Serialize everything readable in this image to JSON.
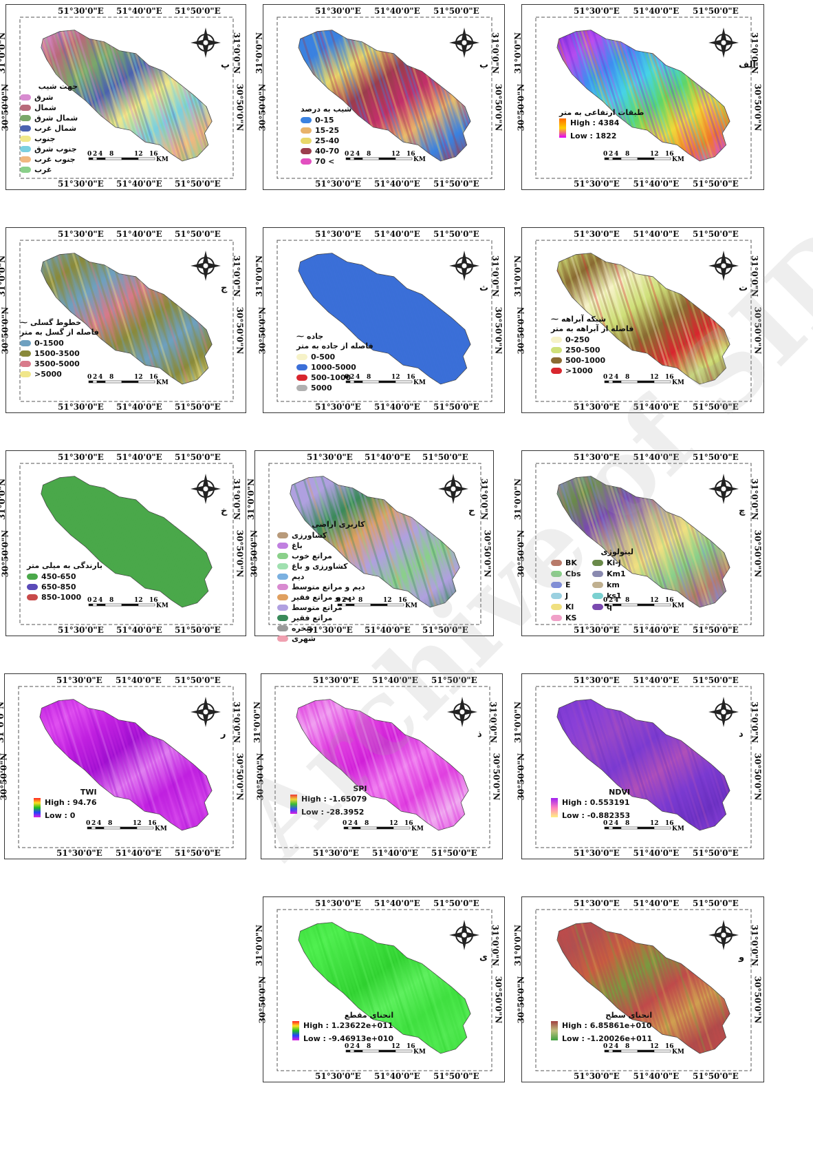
{
  "coords": {
    "lon": [
      "51°30'0\"E",
      "51°40'0\"E",
      "51°50'0\"E"
    ],
    "lat": [
      "31°0'0\"N",
      "30°50'0\"N"
    ]
  },
  "scale": {
    "ticks": [
      "0",
      "2",
      "4",
      "8",
      "12",
      "16"
    ],
    "unit": "KM"
  },
  "watermark": "Archive of SID",
  "panels": [
    {
      "id": "elevation",
      "letter": "الف",
      "legend_title": "طبقات ارتفاعی به متر",
      "type": "gradient",
      "high": "High : 4384",
      "low": "Low : 1822",
      "ramp": [
        "#ff6a00",
        "#ffd000",
        "#e000ff"
      ],
      "colors": [
        "#7a2bd9",
        "#b44cf0",
        "#3f8ef0",
        "#47d3e6",
        "#5ed66a",
        "#f0d83a",
        "#f07a2a",
        "#d34fe8"
      ]
    },
    {
      "id": "slope",
      "letter": "ب",
      "legend_title": "شیب به درصد",
      "type": "classes",
      "items": [
        {
          "label": "0-15",
          "color": "#3b82e0"
        },
        {
          "label": "15-25",
          "color": "#e8b36a"
        },
        {
          "label": "25-40",
          "color": "#e8d86a"
        },
        {
          "label": "40-70",
          "color": "#9b3d4d"
        },
        {
          "label": "70 <",
          "color": "#e24fc0"
        }
      ],
      "colors": [
        "#3b82e0",
        "#3b82e0",
        "#e8d86a",
        "#9b3d4d",
        "#c2306a",
        "#e8b36a",
        "#3b82e0",
        "#9b3d4d"
      ]
    },
    {
      "id": "aspect",
      "letter": "پ",
      "legend_title": "جهت شیب",
      "type": "classes",
      "items": [
        {
          "label": "شرق",
          "color": "#d88bd0"
        },
        {
          "label": "شمال",
          "color": "#b86a7a"
        },
        {
          "label": "شمال شرق",
          "color": "#7aa86a"
        },
        {
          "label": "شمال غرب",
          "color": "#4a62b0"
        },
        {
          "label": "جنوب",
          "color": "#f0e88a"
        },
        {
          "label": "جنوب شرق",
          "color": "#7ad0e0"
        },
        {
          "label": "جنوب غرب",
          "color": "#f0b880"
        },
        {
          "label": "غرب",
          "color": "#8ad08a"
        }
      ],
      "colors": [
        "#d88bd0",
        "#b86a7a",
        "#7aa86a",
        "#4a62b0",
        "#f0e88a",
        "#7ad0e0",
        "#f0b880",
        "#8ad08a"
      ]
    },
    {
      "id": "streams",
      "letter": "ت",
      "legend_title": "فاصله از آبراهه به متر",
      "line_label": "شبکه آبراهه",
      "type": "classes",
      "items": [
        {
          "label": "0-250",
          "color": "#f6f2c8"
        },
        {
          "label": "250-500",
          "color": "#cfe07a"
        },
        {
          "label": "500-1000",
          "color": "#8a6a32"
        },
        {
          "label": ">1000",
          "color": "#d8262e"
        }
      ],
      "colors": [
        "#cfe07a",
        "#8a6a32",
        "#f6f2c8",
        "#cfe07a",
        "#8a6a32",
        "#d8262e",
        "#cfe07a",
        "#8a6a32"
      ]
    },
    {
      "id": "roads",
      "letter": "ث",
      "legend_title": "فاصله از جاده به متر",
      "line_label": "جاده",
      "type": "classes",
      "items": [
        {
          "label": "0-500",
          "color": "#f6f2c8"
        },
        {
          "label": "1000-5000",
          "color": "#3b6fd8"
        },
        {
          "label": "500-1000",
          "color": "#d8262e"
        },
        {
          "label": "5000",
          "color": "#b0b0b0"
        }
      ],
      "colors": [
        "#3b6fd8",
        "#3b6fd8",
        "#3b6fd8",
        "#3b6fd8",
        "#3b6fd8",
        "#3b6fd8",
        "#3b6fd8",
        "#3b6fd8"
      ]
    },
    {
      "id": "faults",
      "letter": "ج",
      "legend_title": "فاصله از گسل به متر",
      "line_label": "خطوط گسلی",
      "type": "classes",
      "items": [
        {
          "label": "0-1500",
          "color": "#6ea0c0"
        },
        {
          "label": "1500-3500",
          "color": "#8a8a3a"
        },
        {
          "label": "3500-5000",
          "color": "#d87a8a"
        },
        {
          "label": ">5000",
          "color": "#f0e68a"
        }
      ],
      "colors": [
        "#6ea0c0",
        "#8a8a3a",
        "#6ea0c0",
        "#d87a8a",
        "#8a8a3a",
        "#6ea0c0",
        "#8a8a3a",
        "#f0e68a"
      ]
    },
    {
      "id": "lithology",
      "letter": "چ",
      "legend_title": "لیتولوژی",
      "type": "classes2col",
      "items": [
        {
          "label": "BK",
          "color": "#b87a6a"
        },
        {
          "label": "Ki-j",
          "color": "#6a8a4a"
        },
        {
          "label": "Cbs",
          "color": "#8ad08a"
        },
        {
          "label": "Km1",
          "color": "#8a8ab0"
        },
        {
          "label": "E",
          "color": "#7a8ae0"
        },
        {
          "label": "km",
          "color": "#c0b090"
        },
        {
          "label": "J",
          "color": "#9ad0e0"
        },
        {
          "label": "ks1",
          "color": "#7ad0d0"
        },
        {
          "label": "Kl",
          "color": "#f0e080"
        },
        {
          "label": "q",
          "color": "#7a4ab0"
        },
        {
          "label": "KS",
          "color": "#f0a0c8"
        }
      ],
      "colors": [
        "#8a8ab0",
        "#6a8a4a",
        "#7a4ab0",
        "#c0b090",
        "#f0e080",
        "#8ad08a",
        "#b87a6a",
        "#7a8ae0"
      ]
    },
    {
      "id": "landuse",
      "letter": "ح",
      "legend_title": "کاربری اراضی",
      "type": "classes",
      "items": [
        {
          "label": "کشاورزی",
          "color": "#b89a7a"
        },
        {
          "label": "باغ",
          "color": "#c080e0"
        },
        {
          "label": "مراتع خوب",
          "color": "#8ad08a"
        },
        {
          "label": "کشاورزی و باغ",
          "color": "#a0e0b0"
        },
        {
          "label": "دیم",
          "color": "#7ab0e0"
        },
        {
          "label": "دیم و مراتع متوسط",
          "color": "#d88ad0"
        },
        {
          "label": "دیم و مراتع فقیر",
          "color": "#e0a060"
        },
        {
          "label": "مراتع متوسط",
          "color": "#b0a0e0"
        },
        {
          "label": "مراتع فقیر",
          "color": "#3a8a5a"
        },
        {
          "label": "صخره",
          "color": "#9a9a9a"
        },
        {
          "label": "شهری",
          "color": "#f0a0b0"
        }
      ],
      "colors": [
        "#b0a0e0",
        "#b0a0e0",
        "#3a8a5a",
        "#e0a060",
        "#b0a0e0",
        "#8ad08a",
        "#b0a0e0",
        "#3a8a5a"
      ]
    },
    {
      "id": "rainfall",
      "letter": "خ",
      "legend_title": "بارندگی به میلی متر",
      "type": "classes",
      "items": [
        {
          "label": "450-650",
          "color": "#4aa84a"
        },
        {
          "label": "650-850",
          "color": "#5a4ab8"
        },
        {
          "label": "850-1000",
          "color": "#c84a4a"
        }
      ],
      "colors": [
        "#4aa84a",
        "#4aa84a",
        "#4aa84a",
        "#4aa84a",
        "#4aa84a",
        "#4aa84a",
        "#4aa84a",
        "#4aa84a"
      ]
    },
    {
      "id": "ndvi",
      "letter": "د",
      "legend_title": "NDVI",
      "type": "gradient",
      "high": "High : 0.553191",
      "low": "Low : -0.882353",
      "ramp": [
        "#a020f0",
        "#ff80c0",
        "#fff080"
      ],
      "colors": [
        "#7a3ad0",
        "#8a40d8",
        "#9848c8",
        "#7a3ad0",
        "#b050b8",
        "#7a3ad0",
        "#6a30c0",
        "#8a40d8"
      ]
    },
    {
      "id": "spi",
      "letter": "ذ",
      "legend_title": "SPI",
      "type": "gradient",
      "high": "High : -1.65079",
      "low": "Low : -28.3952",
      "ramp": [
        "#ff2020",
        "#ffe020",
        "#20c020",
        "#2040ff",
        "#e020e0"
      ],
      "colors": [
        "#e040e0",
        "#f0a0f0",
        "#e040e0",
        "#d020d8",
        "#f080f0",
        "#e040e0",
        "#f0b0f0",
        "#e040e0"
      ]
    },
    {
      "id": "twi",
      "letter": "ر",
      "legend_title": "TWI",
      "type": "gradient",
      "high": "High : 94.76",
      "low": "Low : 0",
      "ramp": [
        "#ff2020",
        "#ffe020",
        "#20c020",
        "#2040ff",
        "#e020e0"
      ],
      "colors": [
        "#c020e0",
        "#e050f0",
        "#c020e0",
        "#a010d0",
        "#e080f0",
        "#c020e0",
        "#d040e8",
        "#c020e0"
      ]
    },
    {
      "id": "plan_curvature",
      "letter": "و",
      "legend_title": "انحنای سطح",
      "type": "gradient",
      "high": "High : 6.85861e+010",
      "low": "Low : -1.20026e+011",
      "ramp": [
        "#a04040",
        "#c0c080",
        "#40a040"
      ],
      "colors": [
        "#c04a4a",
        "#b05050",
        "#c86040",
        "#7a9a40",
        "#c04a4a",
        "#d0a050",
        "#b04a4a",
        "#c04a4a"
      ]
    },
    {
      "id": "profile_curvature",
      "letter": "ی",
      "legend_title": "انحنای مقطع",
      "type": "gradient",
      "high": "High : 1.23622e+011",
      "low": "Low : -9.46913e+010",
      "ramp": [
        "#ff2020",
        "#ffe020",
        "#20c020",
        "#2040ff",
        "#e020e0"
      ],
      "colors": [
        "#40e040",
        "#50f050",
        "#40e040",
        "#30d030",
        "#60f060",
        "#40e040",
        "#50e850",
        "#40e040"
      ]
    }
  ]
}
